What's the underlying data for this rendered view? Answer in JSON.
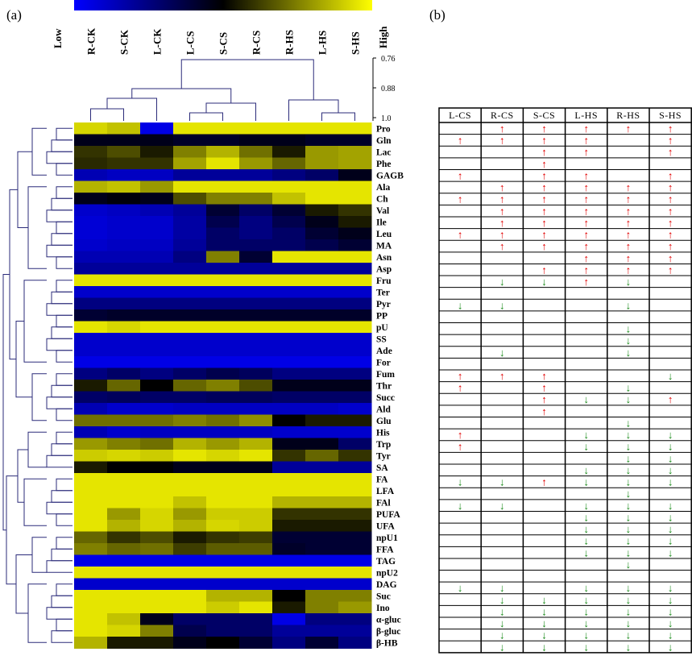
{
  "figure": {
    "panel_a_label": "(a)",
    "panel_b_label": "(b)",
    "scale_low": "Low",
    "scale_high": "High",
    "dendro_ticks": [
      "0.76",
      "0.88",
      "1.0"
    ]
  },
  "chart_data": [
    {
      "type": "heatmap",
      "colormap": {
        "low": "#0000ff",
        "mid": "#000000",
        "high": "#ffff00"
      },
      "dendrogram_distance_range": [
        0.76,
        1.0
      ],
      "columns": [
        "R-CK",
        "S-CK",
        "L-CK",
        "L-CS",
        "S-CS",
        "R-CS",
        "R-HS",
        "L-HS",
        "S-HS"
      ],
      "rows": [
        "Pro",
        "Gln",
        "Lac",
        "Phe",
        "GAGB",
        "Ala",
        "Ch",
        "Val",
        "Ile",
        "Leu",
        "MA",
        "Asn",
        "Asp",
        "Fru",
        "Ter",
        "Pyr",
        "PP",
        "pU",
        "SS",
        "Ade",
        "For",
        "Fum",
        "Thr",
        "Succ",
        "Ald",
        "Glu",
        "His",
        "Trp",
        "Tyr",
        "SA",
        "FA",
        "LFA",
        "FAl",
        "PUFA",
        "UFA",
        "npU1",
        "FFA",
        "TAG",
        "npU2",
        "DAG",
        "Suc",
        "Ino",
        "α-gluc",
        "β-gluc",
        "β-HB"
      ],
      "values": [
        [
          0.92,
          0.88,
          0.05,
          0.95,
          0.95,
          0.95,
          0.95,
          0.95,
          0.95
        ],
        [
          0.45,
          0.45,
          0.45,
          0.42,
          0.42,
          0.45,
          0.45,
          0.42,
          0.42
        ],
        [
          0.6,
          0.65,
          0.55,
          0.75,
          0.85,
          0.72,
          0.55,
          0.8,
          0.82
        ],
        [
          0.58,
          0.6,
          0.6,
          0.82,
          0.95,
          0.8,
          0.7,
          0.8,
          0.82
        ],
        [
          0.15,
          0.12,
          0.12,
          0.2,
          0.2,
          0.2,
          0.25,
          0.3,
          0.45
        ],
        [
          0.85,
          0.88,
          0.8,
          0.95,
          0.95,
          0.95,
          0.95,
          0.95,
          0.95
        ],
        [
          0.45,
          0.48,
          0.45,
          0.65,
          0.75,
          0.75,
          0.88,
          0.95,
          0.95
        ],
        [
          0.1,
          0.12,
          0.15,
          0.2,
          0.4,
          0.3,
          0.4,
          0.55,
          0.6
        ],
        [
          0.08,
          0.1,
          0.1,
          0.18,
          0.35,
          0.25,
          0.35,
          0.45,
          0.55
        ],
        [
          0.08,
          0.1,
          0.1,
          0.18,
          0.3,
          0.25,
          0.3,
          0.4,
          0.45
        ],
        [
          0.1,
          0.12,
          0.12,
          0.2,
          0.3,
          0.3,
          0.3,
          0.35,
          0.4
        ],
        [
          0.15,
          0.15,
          0.15,
          0.25,
          0.75,
          0.4,
          0.95,
          0.95,
          0.95
        ],
        [
          0.2,
          0.2,
          0.2,
          0.2,
          0.2,
          0.2,
          0.2,
          0.2,
          0.2
        ],
        [
          0.95,
          0.95,
          0.95,
          0.95,
          0.95,
          0.95,
          0.95,
          0.95,
          0.95
        ],
        [
          0.1,
          0.1,
          0.1,
          0.1,
          0.1,
          0.1,
          0.1,
          0.1,
          0.1
        ],
        [
          0.25,
          0.25,
          0.25,
          0.25,
          0.25,
          0.25,
          0.25,
          0.25,
          0.25
        ],
        [
          0.4,
          0.42,
          0.42,
          0.42,
          0.42,
          0.42,
          0.42,
          0.42,
          0.42
        ],
        [
          0.95,
          0.92,
          0.95,
          0.95,
          0.95,
          0.95,
          0.95,
          0.95,
          0.95
        ],
        [
          0.1,
          0.1,
          0.1,
          0.1,
          0.1,
          0.1,
          0.1,
          0.1,
          0.1
        ],
        [
          0.1,
          0.1,
          0.1,
          0.1,
          0.1,
          0.1,
          0.1,
          0.1,
          0.1
        ],
        [
          0.05,
          0.05,
          0.05,
          0.05,
          0.05,
          0.05,
          0.05,
          0.05,
          0.05
        ],
        [
          0.25,
          0.3,
          0.25,
          0.3,
          0.35,
          0.32,
          0.25,
          0.25,
          0.25
        ],
        [
          0.55,
          0.7,
          0.5,
          0.7,
          0.75,
          0.65,
          0.45,
          0.45,
          0.45
        ],
        [
          0.3,
          0.32,
          0.3,
          0.3,
          0.32,
          0.32,
          0.3,
          0.3,
          0.3
        ],
        [
          0.15,
          0.1,
          0.1,
          0.12,
          0.12,
          0.12,
          0.12,
          0.12,
          0.1
        ],
        [
          0.72,
          0.72,
          0.72,
          0.75,
          0.72,
          0.78,
          0.5,
          0.55,
          0.55
        ],
        [
          0.15,
          0.1,
          0.12,
          0.12,
          0.12,
          0.12,
          0.1,
          0.1,
          0.1
        ],
        [
          0.8,
          0.75,
          0.72,
          0.85,
          0.8,
          0.85,
          0.45,
          0.45,
          0.3
        ],
        [
          0.9,
          0.92,
          0.9,
          0.95,
          0.92,
          0.95,
          0.6,
          0.7,
          0.6
        ],
        [
          0.55,
          0.5,
          0.5,
          0.45,
          0.45,
          0.45,
          0.2,
          0.2,
          0.2
        ],
        [
          0.95,
          0.95,
          0.95,
          0.95,
          0.95,
          0.95,
          0.95,
          0.95,
          0.95
        ],
        [
          0.95,
          0.95,
          0.95,
          0.95,
          0.95,
          0.95,
          0.95,
          0.95,
          0.95
        ],
        [
          0.95,
          0.95,
          0.95,
          0.88,
          0.95,
          0.95,
          0.85,
          0.85,
          0.85
        ],
        [
          0.95,
          0.8,
          0.92,
          0.8,
          0.9,
          0.9,
          0.6,
          0.6,
          0.6
        ],
        [
          0.95,
          0.85,
          0.92,
          0.85,
          0.92,
          0.9,
          0.55,
          0.55,
          0.55
        ],
        [
          0.7,
          0.6,
          0.65,
          0.55,
          0.6,
          0.62,
          0.4,
          0.4,
          0.4
        ],
        [
          0.75,
          0.7,
          0.72,
          0.62,
          0.68,
          0.68,
          0.42,
          0.4,
          0.4
        ],
        [
          0.05,
          0.05,
          0.05,
          0.05,
          0.05,
          0.05,
          0.05,
          0.05,
          0.05
        ],
        [
          0.95,
          0.95,
          0.95,
          0.95,
          0.95,
          0.95,
          0.95,
          0.95,
          0.95
        ],
        [
          0.1,
          0.1,
          0.1,
          0.1,
          0.1,
          0.1,
          0.1,
          0.1,
          0.1
        ],
        [
          0.95,
          0.95,
          0.95,
          0.95,
          0.85,
          0.85,
          0.5,
          0.75,
          0.75
        ],
        [
          0.95,
          0.95,
          0.95,
          0.95,
          0.9,
          0.95,
          0.55,
          0.75,
          0.8
        ],
        [
          0.95,
          0.88,
          0.45,
          0.3,
          0.3,
          0.3,
          0.05,
          0.25,
          0.25
        ],
        [
          0.95,
          0.92,
          0.75,
          0.35,
          0.3,
          0.3,
          0.2,
          0.2,
          0.2
        ],
        [
          0.85,
          0.55,
          0.55,
          0.45,
          0.5,
          0.4,
          0.25,
          0.4,
          0.25
        ]
      ]
    },
    {
      "type": "table",
      "columns": [
        "L-CS",
        "R-CS",
        "S-CS",
        "L-HS",
        "R-HS",
        "S-HS"
      ],
      "legend": {
        "up": "↑",
        "down": "↓",
        "up_color": "#e00000",
        "down_color": "#1a8a1a"
      },
      "cells": [
        [
          0,
          1,
          1,
          1,
          1,
          1
        ],
        [
          1,
          1,
          1,
          1,
          0,
          1
        ],
        [
          0,
          0,
          1,
          1,
          0,
          1
        ],
        [
          0,
          0,
          1,
          0,
          0,
          0
        ],
        [
          1,
          0,
          1,
          1,
          0,
          1
        ],
        [
          0,
          1,
          1,
          1,
          1,
          1
        ],
        [
          1,
          1,
          1,
          1,
          1,
          1
        ],
        [
          0,
          1,
          1,
          1,
          1,
          1
        ],
        [
          0,
          1,
          1,
          1,
          1,
          1
        ],
        [
          1,
          1,
          1,
          1,
          1,
          1
        ],
        [
          0,
          1,
          1,
          1,
          1,
          1
        ],
        [
          0,
          0,
          0,
          1,
          1,
          1
        ],
        [
          0,
          0,
          1,
          1,
          1,
          1
        ],
        [
          0,
          -1,
          -1,
          1,
          -1,
          0
        ],
        [
          0,
          0,
          0,
          0,
          0,
          0
        ],
        [
          -1,
          -1,
          0,
          0,
          -1,
          0
        ],
        [
          0,
          0,
          0,
          0,
          0,
          0
        ],
        [
          0,
          0,
          0,
          0,
          -1,
          0
        ],
        [
          0,
          0,
          0,
          0,
          -1,
          0
        ],
        [
          0,
          -1,
          0,
          0,
          -1,
          0
        ],
        [
          0,
          0,
          0,
          0,
          0,
          0
        ],
        [
          1,
          1,
          1,
          0,
          0,
          -1
        ],
        [
          1,
          0,
          1,
          0,
          -1,
          0
        ],
        [
          0,
          0,
          1,
          -1,
          -1,
          1
        ],
        [
          0,
          0,
          1,
          0,
          0,
          0
        ],
        [
          0,
          0,
          0,
          0,
          -1,
          0
        ],
        [
          1,
          0,
          0,
          -1,
          -1,
          -1
        ],
        [
          1,
          0,
          0,
          -1,
          -1,
          -1
        ],
        [
          0,
          0,
          0,
          0,
          -1,
          -1
        ],
        [
          0,
          0,
          0,
          -1,
          -1,
          -1
        ],
        [
          -1,
          -1,
          1,
          -1,
          -1,
          -1
        ],
        [
          0,
          0,
          0,
          0,
          -1,
          0
        ],
        [
          -1,
          -1,
          0,
          -1,
          -1,
          -1
        ],
        [
          0,
          0,
          0,
          -1,
          -1,
          -1
        ],
        [
          0,
          0,
          0,
          -1,
          -1,
          -1
        ],
        [
          0,
          0,
          0,
          -1,
          -1,
          -1
        ],
        [
          0,
          0,
          0,
          -1,
          -1,
          -1
        ],
        [
          0,
          0,
          0,
          0,
          -1,
          0
        ],
        [
          0,
          0,
          0,
          0,
          0,
          0
        ],
        [
          -1,
          -1,
          0,
          -1,
          -1,
          -1
        ],
        [
          0,
          -1,
          -1,
          -1,
          -1,
          -1
        ],
        [
          0,
          -1,
          -1,
          -1,
          -1,
          -1
        ],
        [
          0,
          -1,
          -1,
          -1,
          -1,
          -1
        ],
        [
          0,
          -1,
          -1,
          -1,
          -1,
          -1
        ],
        [
          0,
          -1,
          -1,
          -1,
          -1,
          -1
        ]
      ]
    }
  ]
}
